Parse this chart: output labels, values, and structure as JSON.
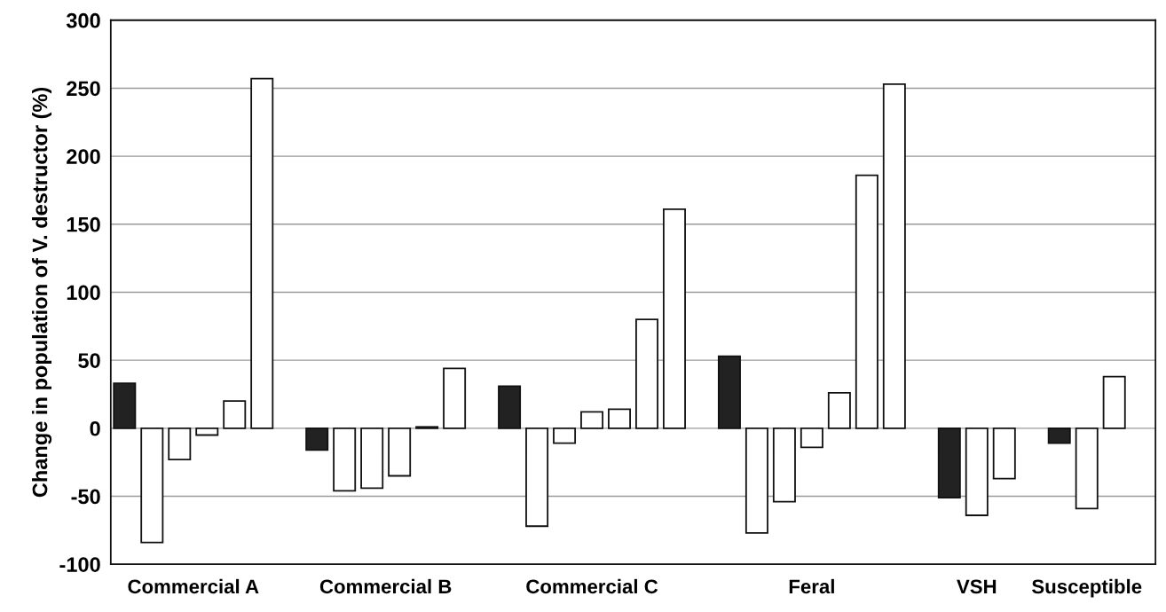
{
  "chart_data": {
    "type": "bar",
    "ylabel": "Change in population of V. destructor (%)",
    "categories": [
      null,
      null,
      "Commercial A",
      null,
      null,
      null,
      null,
      null,
      null,
      "Commercial B",
      null,
      null,
      null,
      null,
      null,
      null,
      null,
      "Commercial C",
      null,
      null,
      null,
      null,
      null,
      null,
      null,
      "Feral",
      null,
      null,
      null,
      null,
      null,
      "VSH",
      null,
      null,
      null,
      "Susceptible",
      null
    ],
    "values": [
      33,
      -84,
      -23,
      -5,
      20,
      257,
      null,
      -16,
      -46,
      -44,
      -35,
      1,
      44,
      null,
      31,
      -72,
      -11,
      12,
      14,
      80,
      161,
      null,
      53,
      -77,
      -54,
      -14,
      26,
      186,
      253,
      null,
      -51,
      -64,
      -37,
      null,
      -11,
      -59,
      38
    ],
    "colors": [
      "#222222",
      "#ffffff",
      "#ffffff",
      "#ffffff",
      "#ffffff",
      "#ffffff",
      null,
      "#222222",
      "#ffffff",
      "#ffffff",
      "#ffffff",
      "#ffffff",
      "#ffffff",
      null,
      "#222222",
      "#ffffff",
      "#ffffff",
      "#ffffff",
      "#ffffff",
      "#ffffff",
      "#ffffff",
      null,
      "#222222",
      "#ffffff",
      "#ffffff",
      "#ffffff",
      "#ffffff",
      "#ffffff",
      "#ffffff",
      null,
      "#222222",
      "#ffffff",
      "#ffffff",
      null,
      "#222222",
      "#ffffff",
      "#ffffff"
    ],
    "ylim": [
      -100,
      300
    ],
    "yticks": [
      -100,
      -50,
      0,
      50,
      100,
      150,
      200,
      250,
      300
    ],
    "grid": "y",
    "legend": false
  }
}
